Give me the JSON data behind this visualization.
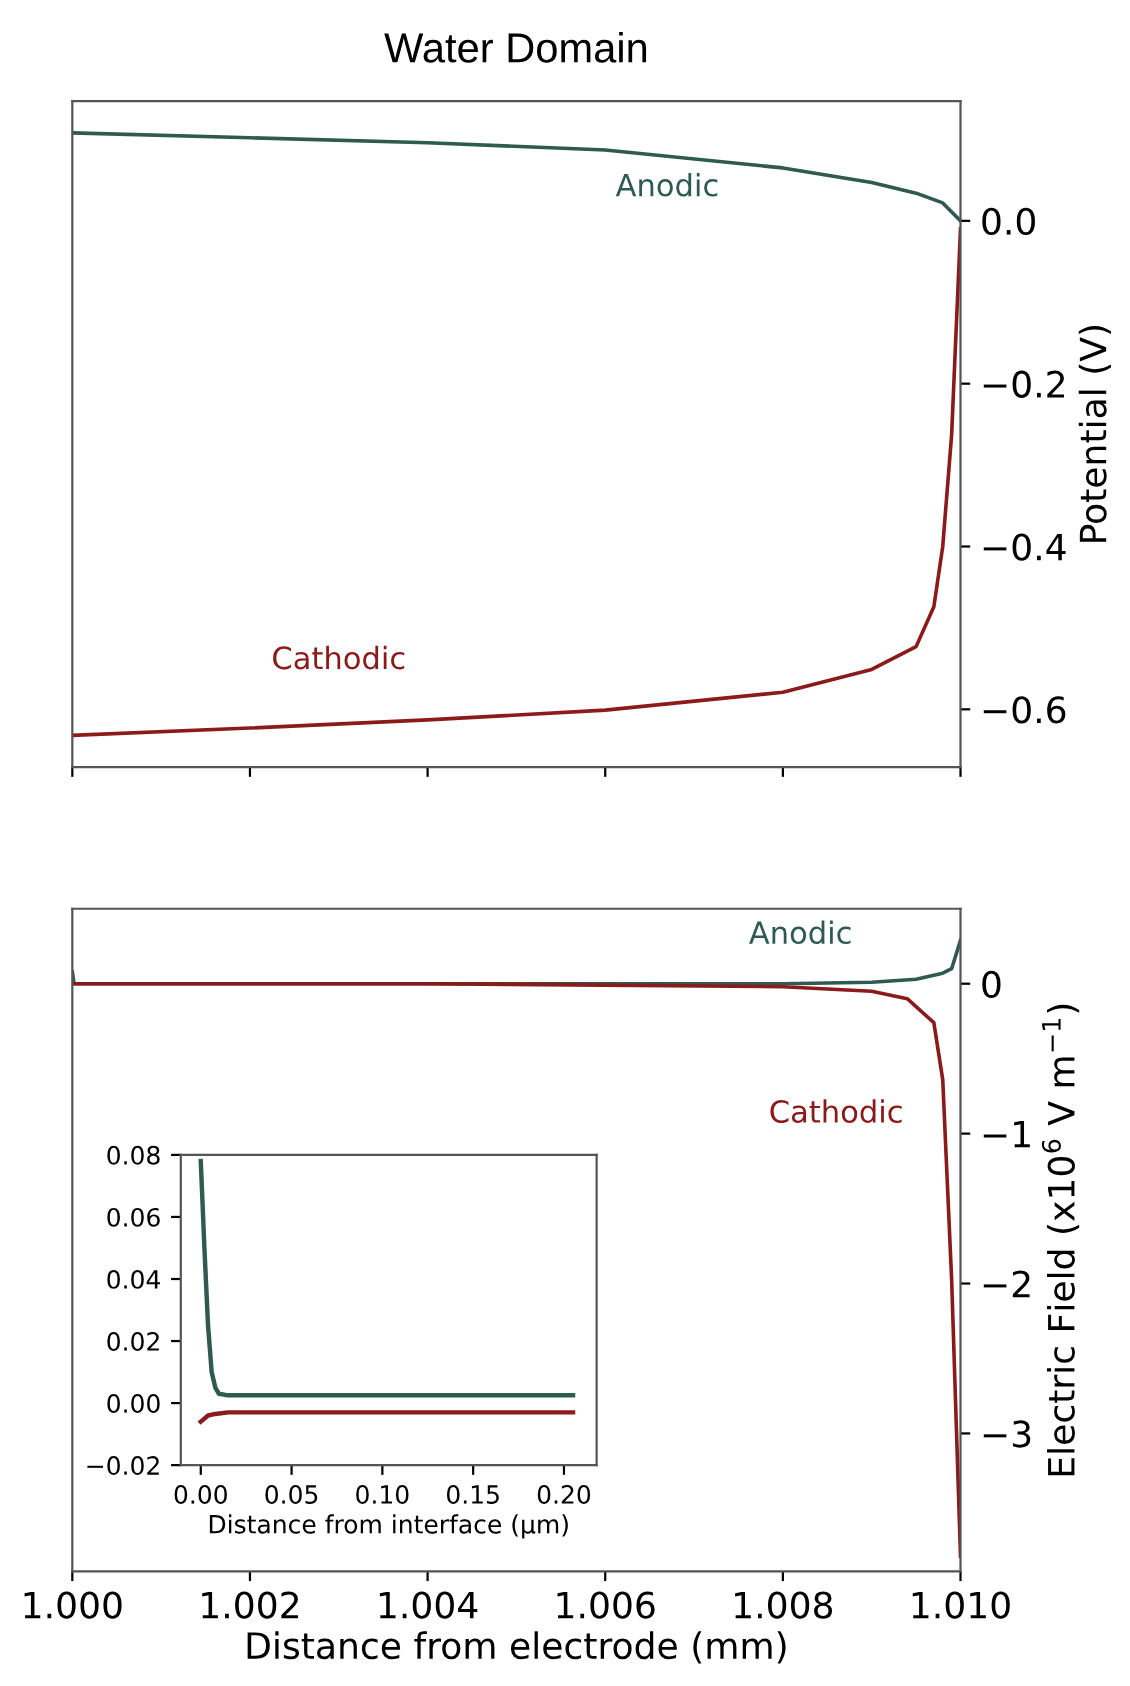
{
  "chart_data": [
    {
      "type": "line",
      "title": "Water Domain",
      "ylabel": "Potential (V)",
      "xlim": [
        1.0,
        1.01
      ],
      "xticks": [
        {
          "value": 1.0,
          "label": null
        },
        {
          "value": 1.002,
          "label": null
        },
        {
          "value": 1.004,
          "label": null
        },
        {
          "value": 1.006,
          "label": null
        },
        {
          "value": 1.008,
          "label": null
        },
        {
          "value": 1.01,
          "label": null
        }
      ],
      "ylim": [
        -0.671,
        0.147
      ],
      "yticks": [
        {
          "value": 0.0,
          "label": "0.0"
        },
        {
          "value": -0.2,
          "label": "−0.2"
        },
        {
          "value": -0.4,
          "label": "−0.4"
        },
        {
          "value": -0.6,
          "label": "−0.6"
        }
      ],
      "tick_labels": "y",
      "grid": false,
      "legend": false,
      "series": [
        {
          "name": "Anodic",
          "color": "#2f5a4f",
          "x": [
            1.0,
            1.002,
            1.004,
            1.006,
            1.008,
            1.009,
            1.0095,
            1.0098,
            1.01
          ],
          "values": [
            0.108,
            0.102,
            0.096,
            0.087,
            0.065,
            0.047,
            0.034,
            0.022,
            0.0
          ]
        },
        {
          "name": "Cathodic",
          "color": "#8b1a1a",
          "x": [
            1.0,
            1.002,
            1.004,
            1.006,
            1.008,
            1.009,
            1.0095,
            1.0097,
            1.0098,
            1.0099,
            1.01
          ],
          "values": [
            -0.632,
            -0.623,
            -0.613,
            -0.601,
            -0.579,
            -0.551,
            -0.523,
            -0.474,
            -0.4,
            -0.263,
            -0.01
          ]
        }
      ]
    },
    {
      "type": "line",
      "xlabel": "Distance from electrode (mm)",
      "ylabel": "Electric Field (x10$^{6}$ V m$^{−1}$)",
      "xlim": [
        1.0,
        1.01
      ],
      "xticks": [
        {
          "value": 1.0,
          "label": "1.000"
        },
        {
          "value": 1.002,
          "label": "1.002"
        },
        {
          "value": 1.004,
          "label": "1.004"
        },
        {
          "value": 1.006,
          "label": "1.006"
        },
        {
          "value": 1.008,
          "label": "1.008"
        },
        {
          "value": 1.01,
          "label": "1.010"
        }
      ],
      "ylim": [
        -3.92,
        0.5
      ],
      "yticks": [
        0,
        {
          "value": -1,
          "label": "−1"
        },
        {
          "value": -2,
          "label": "−2"
        },
        {
          "value": -3,
          "label": "−3"
        }
      ],
      "grid": false,
      "legend": false,
      "series": [
        {
          "name": "Anodic",
          "color": "#2f5a4f",
          "x": [
            1.0,
            1.00002,
            1.0001,
            1.004,
            1.008,
            1.009,
            1.0095,
            1.0098,
            1.0099,
            1.01
          ],
          "values": [
            0.08,
            0.0,
            0.0,
            0.0,
            0.0,
            0.01,
            0.03,
            0.07,
            0.1,
            0.29
          ]
        },
        {
          "name": "Cathodic",
          "color": "#8b1a1a",
          "x": [
            1.0,
            1.004,
            1.008,
            1.009,
            1.0094,
            1.0097,
            1.0098,
            1.0099,
            1.01
          ],
          "values": [
            0.0,
            0.0,
            -0.02,
            -0.05,
            -0.1,
            -0.26,
            -0.64,
            -1.97,
            -3.82
          ]
        }
      ]
    },
    {
      "type": "line",
      "xlabel": "Distance from interface (μm)",
      "xlim": [
        -0.011,
        0.218
      ],
      "xticks": [
        {
          "value": 0.0,
          "label": "0.00"
        },
        {
          "value": 0.05,
          "label": "0.05"
        },
        {
          "value": 0.1,
          "label": "0.10"
        },
        {
          "value": 0.15,
          "label": "0.15"
        },
        {
          "value": 0.2,
          "label": "0.20"
        }
      ],
      "ylim": [
        -0.02,
        0.08
      ],
      "yticks": [
        {
          "value": -0.02,
          "label": "−0.02"
        },
        {
          "value": 0.0,
          "label": "0.00"
        },
        {
          "value": 0.02,
          "label": "0.02"
        },
        {
          "value": 0.04,
          "label": "0.04"
        },
        {
          "value": 0.06,
          "label": "0.06"
        },
        {
          "value": 0.08,
          "label": "0.08"
        }
      ],
      "grid": false,
      "legend": false,
      "series": [
        {
          "color": "#2f5a4f",
          "x": [
            0.0,
            0.002,
            0.004,
            0.006,
            0.008,
            0.01,
            0.015,
            0.05,
            0.1,
            0.15,
            0.205
          ],
          "values": [
            0.078,
            0.05,
            0.025,
            0.01,
            0.005,
            0.003,
            0.0025,
            0.0025,
            0.0025,
            0.0025,
            0.0025
          ]
        },
        {
          "color": "#8b1a1a",
          "x": [
            0.0,
            0.002,
            0.004,
            0.008,
            0.015,
            0.05,
            0.1,
            0.15,
            0.205
          ],
          "values": [
            -0.006,
            -0.005,
            -0.004,
            -0.0035,
            -0.003,
            -0.003,
            -0.003,
            -0.003,
            -0.003
          ]
        }
      ]
    }
  ]
}
